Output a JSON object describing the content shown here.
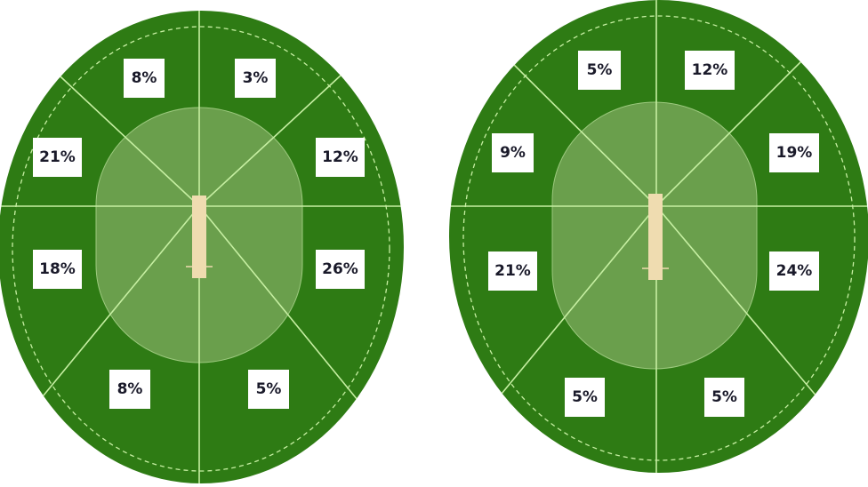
{
  "colors": {
    "field": "#2e7b14",
    "inner_circle": "#6a9f4c",
    "lines": "#c6efa2",
    "pitch": "#efdcb0",
    "label_bg": "#ffffff"
  },
  "wheels": [
    {
      "zones": {
        "top_left": "8%",
        "top_right": "3%",
        "upper_left": "21%",
        "upper_right": "12%",
        "lower_left": "18%",
        "lower_right": "26%",
        "bottom_left": "8%",
        "bottom_right": "5%"
      }
    },
    {
      "zones": {
        "top_left": "5%",
        "top_right": "12%",
        "upper_left": "9%",
        "upper_right": "19%",
        "lower_left": "21%",
        "lower_right": "24%",
        "bottom_left": "5%",
        "bottom_right": "5%"
      }
    }
  ]
}
